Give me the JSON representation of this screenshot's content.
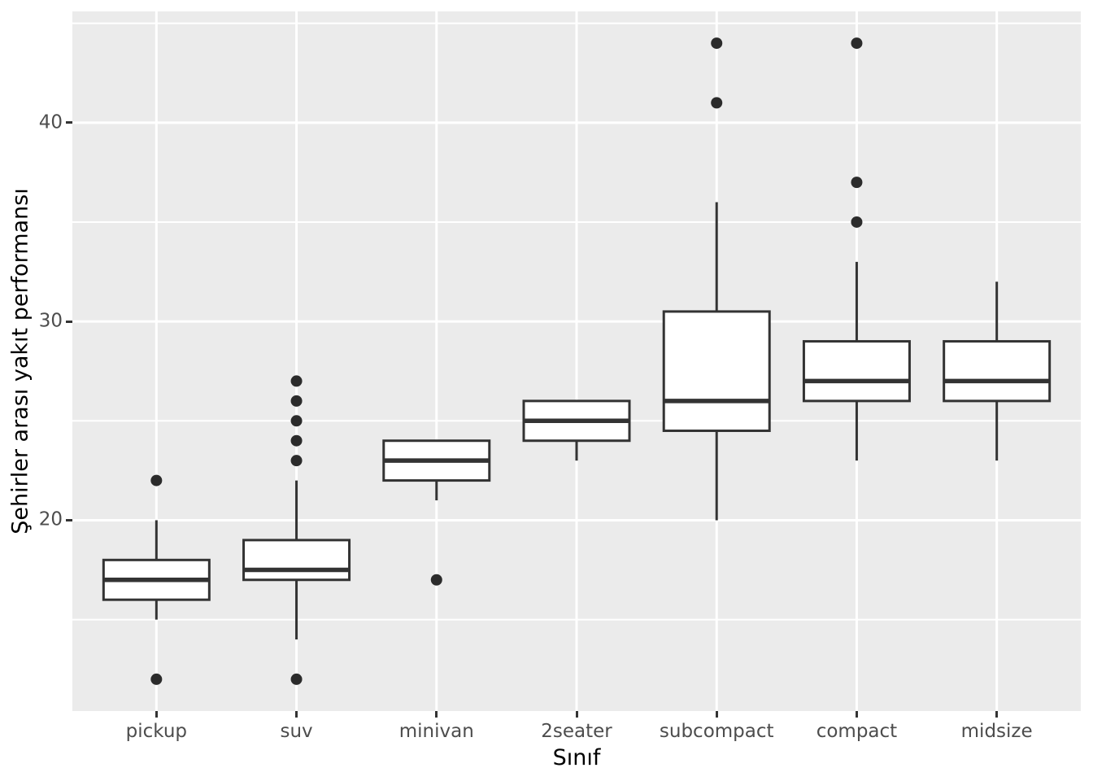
{
  "chart_data": {
    "type": "boxplot",
    "title": "",
    "xlabel": "Sınıf",
    "ylabel": "Şehirler arası yakıt performansı",
    "categories": [
      "pickup",
      "suv",
      "minivan",
      "2seater",
      "subcompact",
      "compact",
      "midsize"
    ],
    "boxes": [
      {
        "category": "pickup",
        "whisker_low": 15,
        "q1": 16,
        "median": 17,
        "q3": 18,
        "whisker_high": 20,
        "outliers": [
          12,
          22
        ]
      },
      {
        "category": "suv",
        "whisker_low": 14,
        "q1": 17,
        "median": 17.5,
        "q3": 19,
        "whisker_high": 22,
        "outliers": [
          12,
          23,
          24,
          25,
          26,
          27
        ]
      },
      {
        "category": "minivan",
        "whisker_low": 21,
        "q1": 22,
        "median": 23,
        "q3": 24,
        "whisker_high": 24,
        "outliers": [
          17
        ]
      },
      {
        "category": "2seater",
        "whisker_low": 23,
        "q1": 24,
        "median": 25,
        "q3": 26,
        "whisker_high": 26,
        "outliers": []
      },
      {
        "category": "subcompact",
        "whisker_low": 20,
        "q1": 24.5,
        "median": 26,
        "q3": 30.5,
        "whisker_high": 36,
        "outliers": [
          41,
          44
        ]
      },
      {
        "category": "compact",
        "whisker_low": 23,
        "q1": 26,
        "median": 27,
        "q3": 29,
        "whisker_high": 33,
        "outliers": [
          35,
          37,
          44
        ]
      },
      {
        "category": "midsize",
        "whisker_low": 23,
        "q1": 26,
        "median": 27,
        "q3": 29,
        "whisker_high": 32,
        "outliers": []
      }
    ],
    "y_ticks": [
      20,
      30,
      40
    ],
    "y_minor_ticks": [
      15,
      25,
      35,
      45
    ],
    "ylim": [
      10.4,
      45.6
    ],
    "grid": true,
    "legend_position": "none",
    "colors": {
      "panel_background": "#EBEBEB",
      "grid_line": "#FFFFFF",
      "box_stroke": "#333333",
      "box_fill": "#FFFFFF",
      "outlier_fill": "#2B2B2B",
      "tick_mark": "#333333",
      "tick_label": "#4D4D4D",
      "axis_title": "#000000"
    }
  }
}
